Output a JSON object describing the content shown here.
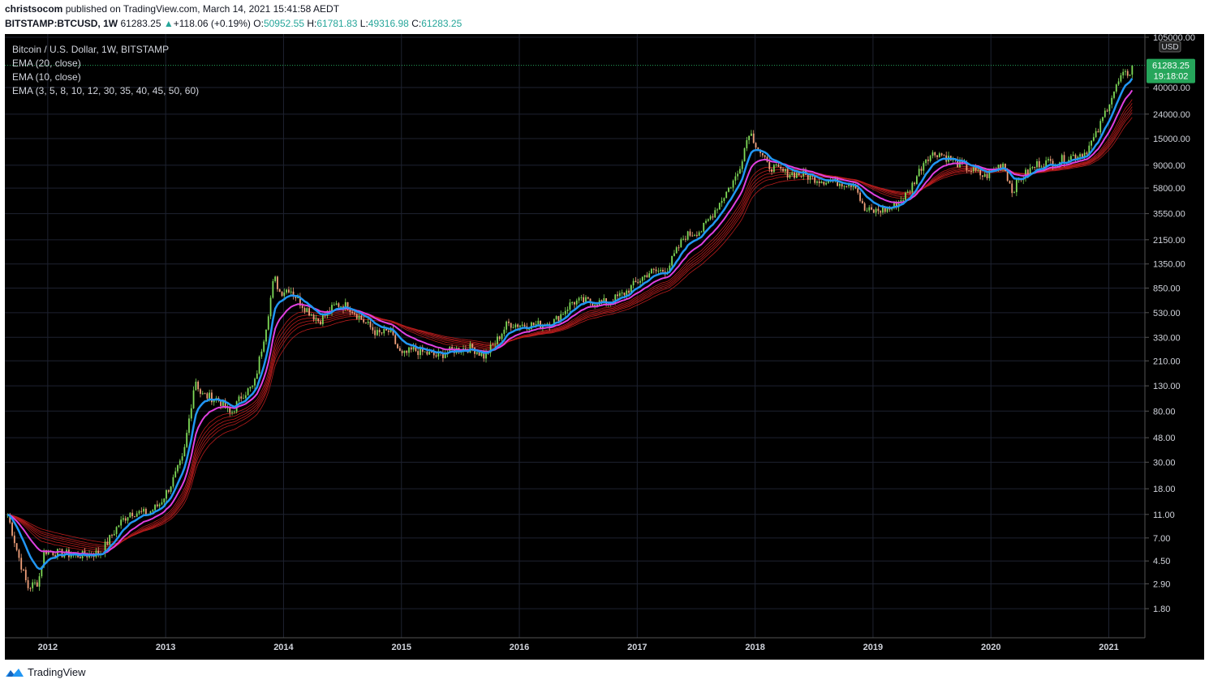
{
  "header": {
    "author": "christsocom",
    "published_text": " published on TradingView.com, March 14, 2021 15:41:58 AEDT",
    "symbol": "BITSTAMP:BTCUSD, 1W",
    "last": "61283.25",
    "change": "+118.06 (+0.19%)",
    "open_label": "O:",
    "open": "50952.55",
    "high_label": "H:",
    "high": "61781.83",
    "low_label": "L:",
    "low": "49316.98",
    "close_label": "C:",
    "close": "61283.25"
  },
  "legend": {
    "title": "Bitcoin / U.S. Dollar, 1W, BITSTAMP",
    "ema1": "EMA (20, close)",
    "ema2": "EMA (10, close)",
    "ema3": "EMA (3, 5, 8, 10, 12, 30, 35, 40, 45, 50, 60)"
  },
  "price_badge": {
    "price": "61283.25",
    "countdown": "19:18:02"
  },
  "currency_label": "USD",
  "footer": {
    "brand": "TradingView"
  },
  "colors": {
    "background": "#000000",
    "grid": "#1e2230",
    "up": "#7ed957",
    "down": "#f0a07a",
    "ema_fast": "#2196f3",
    "ema_slow": "#e040e0",
    "ema_ribbon": "#b71c1c",
    "badge": "#26a65b"
  },
  "chart_data": {
    "type": "candlestick",
    "title": "Bitcoin / U.S. Dollar, 1W, BITSTAMP",
    "y_scale": "log",
    "ylim": [
      1.3,
      105000
    ],
    "y_ticks": [
      "105000.00",
      "40000.00",
      "24000.00",
      "15000.00",
      "9000.00",
      "5800.00",
      "3550.00",
      "2150.00",
      "1350.00",
      "850.00",
      "530.00",
      "330.00",
      "210.00",
      "130.00",
      "80.00",
      "48.00",
      "30.00",
      "18.00",
      "11.00",
      "7.00",
      "4.50",
      "2.90",
      "1.80"
    ],
    "x_ticks": [
      "2012",
      "2013",
      "2014",
      "2015",
      "2016",
      "2017",
      "2018",
      "2019",
      "2020",
      "2021"
    ],
    "xlim": [
      2011.65,
      2021.32
    ],
    "price_path": [
      [
        2011.66,
        11
      ],
      [
        2011.75,
        5
      ],
      [
        2011.83,
        2.7
      ],
      [
        2011.92,
        3.0
      ],
      [
        2011.97,
        5.5
      ],
      [
        2012.1,
        5.2
      ],
      [
        2012.3,
        5.0
      ],
      [
        2012.45,
        5.3
      ],
      [
        2012.6,
        9
      ],
      [
        2012.7,
        11.5
      ],
      [
        2012.85,
        11.2
      ],
      [
        2012.95,
        13.5
      ],
      [
        2013.05,
        20
      ],
      [
        2013.15,
        33
      ],
      [
        2013.25,
        150
      ],
      [
        2013.3,
        110
      ],
      [
        2013.45,
        100
      ],
      [
        2013.55,
        75
      ],
      [
        2013.65,
        110
      ],
      [
        2013.75,
        130
      ],
      [
        2013.85,
        400
      ],
      [
        2013.92,
        1050
      ],
      [
        2013.97,
        780
      ],
      [
        2014.05,
        850
      ],
      [
        2014.15,
        630
      ],
      [
        2014.3,
        450
      ],
      [
        2014.45,
        620
      ],
      [
        2014.55,
        600
      ],
      [
        2014.7,
        430
      ],
      [
        2014.8,
        350
      ],
      [
        2014.9,
        370
      ],
      [
        2015.0,
        230
      ],
      [
        2015.1,
        260
      ],
      [
        2015.3,
        230
      ],
      [
        2015.45,
        260
      ],
      [
        2015.6,
        270
      ],
      [
        2015.7,
        230
      ],
      [
        2015.8,
        300
      ],
      [
        2015.9,
        430
      ],
      [
        2016.0,
        420
      ],
      [
        2016.15,
        420
      ],
      [
        2016.3,
        450
      ],
      [
        2016.45,
        650
      ],
      [
        2016.55,
        660
      ],
      [
        2016.75,
        640
      ],
      [
        2016.9,
        780
      ],
      [
        2017.0,
        960
      ],
      [
        2017.1,
        1150
      ],
      [
        2017.25,
        1200
      ],
      [
        2017.4,
        2300
      ],
      [
        2017.55,
        2600
      ],
      [
        2017.7,
        4400
      ],
      [
        2017.85,
        7500
      ],
      [
        2017.95,
        17500
      ],
      [
        2018.0,
        14000
      ],
      [
        2018.1,
        9000
      ],
      [
        2018.25,
        7800
      ],
      [
        2018.4,
        7500
      ],
      [
        2018.55,
        6800
      ],
      [
        2018.7,
        6500
      ],
      [
        2018.85,
        6300
      ],
      [
        2018.92,
        3800
      ],
      [
        2019.0,
        3700
      ],
      [
        2019.15,
        3900
      ],
      [
        2019.3,
        5300
      ],
      [
        2019.45,
        10500
      ],
      [
        2019.55,
        11500
      ],
      [
        2019.7,
        9500
      ],
      [
        2019.82,
        8300
      ],
      [
        2019.95,
        7200
      ],
      [
        2020.1,
        9500
      ],
      [
        2020.18,
        5500
      ],
      [
        2020.25,
        7000
      ],
      [
        2020.4,
        9300
      ],
      [
        2020.55,
        9600
      ],
      [
        2020.7,
        10800
      ],
      [
        2020.8,
        11500
      ],
      [
        2020.9,
        16500
      ],
      [
        2021.0,
        30000
      ],
      [
        2021.1,
        48000
      ],
      [
        2021.2,
        56000
      ],
      [
        2021.2,
        61283
      ]
    ]
  }
}
